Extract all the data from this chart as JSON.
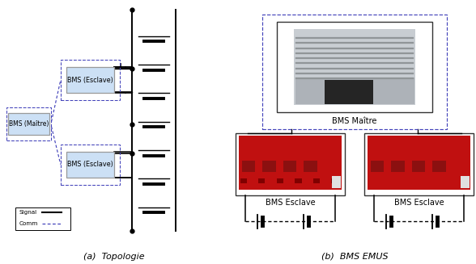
{
  "fig_width": 5.88,
  "fig_height": 3.27,
  "dpi": 100,
  "background_color": "#ffffff",
  "subtitle_a": "(a)  Topologie",
  "subtitle_b": "(b)  BMS EMUS",
  "box_maitre_label": "BMS (Maître)",
  "box_esclave1_label": "BMS (Esclave)",
  "box_esclave2_label": "BMS (Esclave)",
  "box_fill": "#cce0f5",
  "box_edge": "#999999",
  "dashed_color": "#4444bb",
  "signal_color": "#111111",
  "legend_signal": "Signal",
  "legend_comm": "Comm",
  "bms_maitre_label": "BMS Maître",
  "bms_esclave_left": "BMS Esclave",
  "bms_esclave_right": "BMS Esclave"
}
